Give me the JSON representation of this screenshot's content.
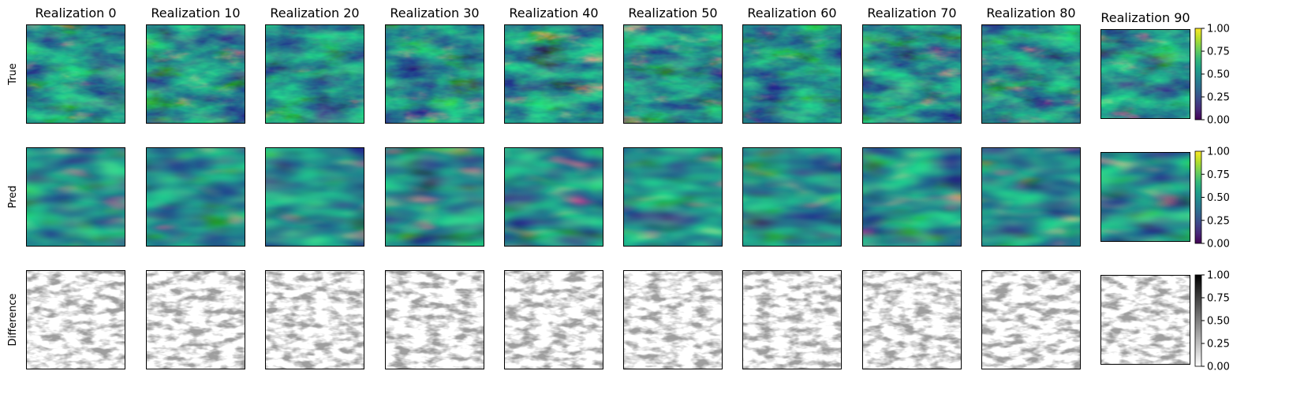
{
  "chart_data": {
    "type": "heatmap",
    "columns": [
      "Realization 0",
      "Realization 10",
      "Realization 20",
      "Realization 30",
      "Realization 40",
      "Realization 50",
      "Realization 60",
      "Realization 70",
      "Realization 80",
      "Realization 90"
    ],
    "rows": [
      {
        "label": "True",
        "colormap": "viridis",
        "clim": [
          0,
          1
        ]
      },
      {
        "label": "Pred",
        "colormap": "viridis",
        "clim": [
          0,
          1
        ]
      },
      {
        "label": "Difference",
        "colormap": "Greys",
        "clim": [
          0,
          1
        ]
      }
    ],
    "colorbar_ticks": [
      "0.00",
      "0.25",
      "0.50",
      "0.75",
      "1.00"
    ],
    "colorbar_values": [
      0,
      0.25,
      0.5,
      0.75,
      1.0
    ],
    "grid": false
  },
  "colors": {
    "viridis": [
      "#440154",
      "#482878",
      "#3e4989",
      "#31688e",
      "#26828e",
      "#1f9e89",
      "#35b779",
      "#6ece58",
      "#b5de2b",
      "#fde725"
    ],
    "greys": [
      "#ffffff",
      "#000000"
    ]
  }
}
